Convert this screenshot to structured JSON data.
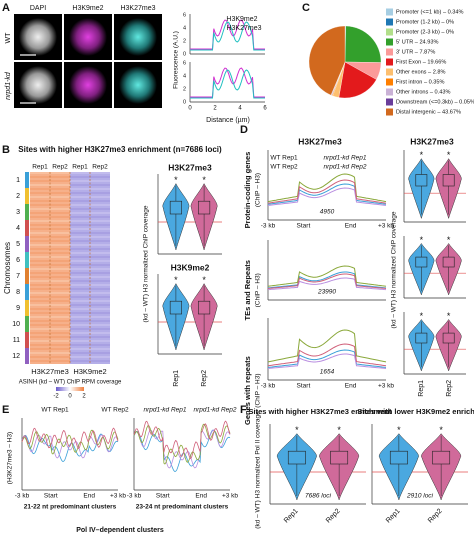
{
  "A": {
    "label": "A",
    "columns": [
      "DAPI",
      "H3K9me2",
      "H3K27me3"
    ],
    "rows": [
      "WT",
      "nrpd1-kd"
    ],
    "legend": [
      "H3K9me2",
      "H3K27me3"
    ],
    "y_label": "Fluorescence (A.U.)",
    "x_label": "Distance (µm)",
    "yticks": [
      "0",
      "2",
      "4",
      "6"
    ],
    "xticks": [
      "0",
      "2",
      "4",
      "6"
    ]
  },
  "B": {
    "label": "B",
    "title": "Sites with higher H3K27me3 enrichment (n=7686 loci)",
    "chromosomes": [
      "1",
      "2",
      "3",
      "4",
      "5",
      "6",
      "7",
      "8",
      "9",
      "10",
      "11",
      "12"
    ],
    "y_label": "Chromosomes",
    "reps": [
      "Rep1",
      "Rep2",
      "Rep1",
      "Rep2"
    ],
    "marks": [
      "H3K27me3",
      "H3K9me2"
    ],
    "colorbar_label": "ASINH (kd – WT) ChIP RPM coverage",
    "colorbar_ticks": [
      "-2",
      "0",
      "2"
    ],
    "violin_titles": [
      "H3K27me3",
      "H3K9me2"
    ],
    "violin_y_label": "(kd – WT) H3 normalized ChIP coverage",
    "violin_x": [
      "Rep1",
      "Rep2"
    ],
    "stars": [
      "*",
      "*",
      "*",
      "*"
    ]
  },
  "C": {
    "label": "C",
    "legend": [
      "Promoter (<=1 kb) – 0.34%",
      "Promoter (1-2 kb) – 0%",
      "Promoter (2-3 kb) – 0%",
      "5' UTR – 24.93%",
      "3' UTR – 7.87%",
      "First Exon – 19.66%",
      "Other exons – 2.8%",
      "First intron – 0.35%",
      "Other introns – 0.43%",
      "Downstream (<=0.3kb) – 0.05%",
      "Distal intergenic – 43.67%"
    ],
    "values": [
      0.34,
      0,
      0,
      24.93,
      7.87,
      19.66,
      2.8,
      0.35,
      0.43,
      0.05,
      43.67
    ],
    "colors": [
      "#a6cee3",
      "#1f78b4",
      "#b2df8a",
      "#33a02c",
      "#fb9a99",
      "#e31a1c",
      "#fdbf6f",
      "#ff7f00",
      "#cab2d6",
      "#6a3d9a",
      "#d2691e"
    ]
  },
  "D": {
    "label": "D",
    "title": "H3K27me3",
    "rows": [
      "Protein-coding genes",
      "TEs and Repeats",
      "Genes with repeats"
    ],
    "row_units": [
      "(ChIP – H3)",
      "(ChIP – H3)",
      "(ChIP – H3)"
    ],
    "legend": [
      "WT Rep1",
      "nrpd1-kd Rep1",
      "WT Rep2",
      "nrpd1-kd Rep2"
    ],
    "counts": [
      "4950",
      "23990",
      "1654"
    ],
    "xticks": [
      "-3 kb",
      "Start",
      "End",
      "+3 kb"
    ],
    "violin_title": "H3K27me3",
    "violin_y_label": "(kd – WT) H3 normalized ChIP coverage",
    "violin_x": [
      "Rep1",
      "Rep2"
    ],
    "stars": [
      "*",
      "*",
      "*",
      "*",
      "*",
      "*"
    ]
  },
  "E": {
    "label": "E",
    "legend": [
      "WT Rep1",
      "WT Rep2",
      "nrpd1-kd Rep1",
      "nrpd1-kd Rep2"
    ],
    "y_label": "(H3K27me3 – H3)",
    "xticks": [
      "-3 kb",
      "Start",
      "End",
      "+3 kb"
    ],
    "subtitles": [
      "21-22 nt predominant clusters",
      "23-24 nt predominant clusters"
    ],
    "caption": "Pol IV–dependent clusters"
  },
  "F": {
    "label": "F",
    "titles": [
      "Sites with higher H3K27me3 enrichment",
      "Sites with lower H3K9me2 enrichment"
    ],
    "y_label": "(kd – WT) H3 normalized Pol II coverage",
    "counts": [
      "7686 loci",
      "2910 loci"
    ],
    "xlabels": [
      "Rep1",
      "Rep2",
      "Rep1",
      "Rep2"
    ],
    "stars": [
      "*",
      "*",
      "*",
      "*"
    ]
  }
}
